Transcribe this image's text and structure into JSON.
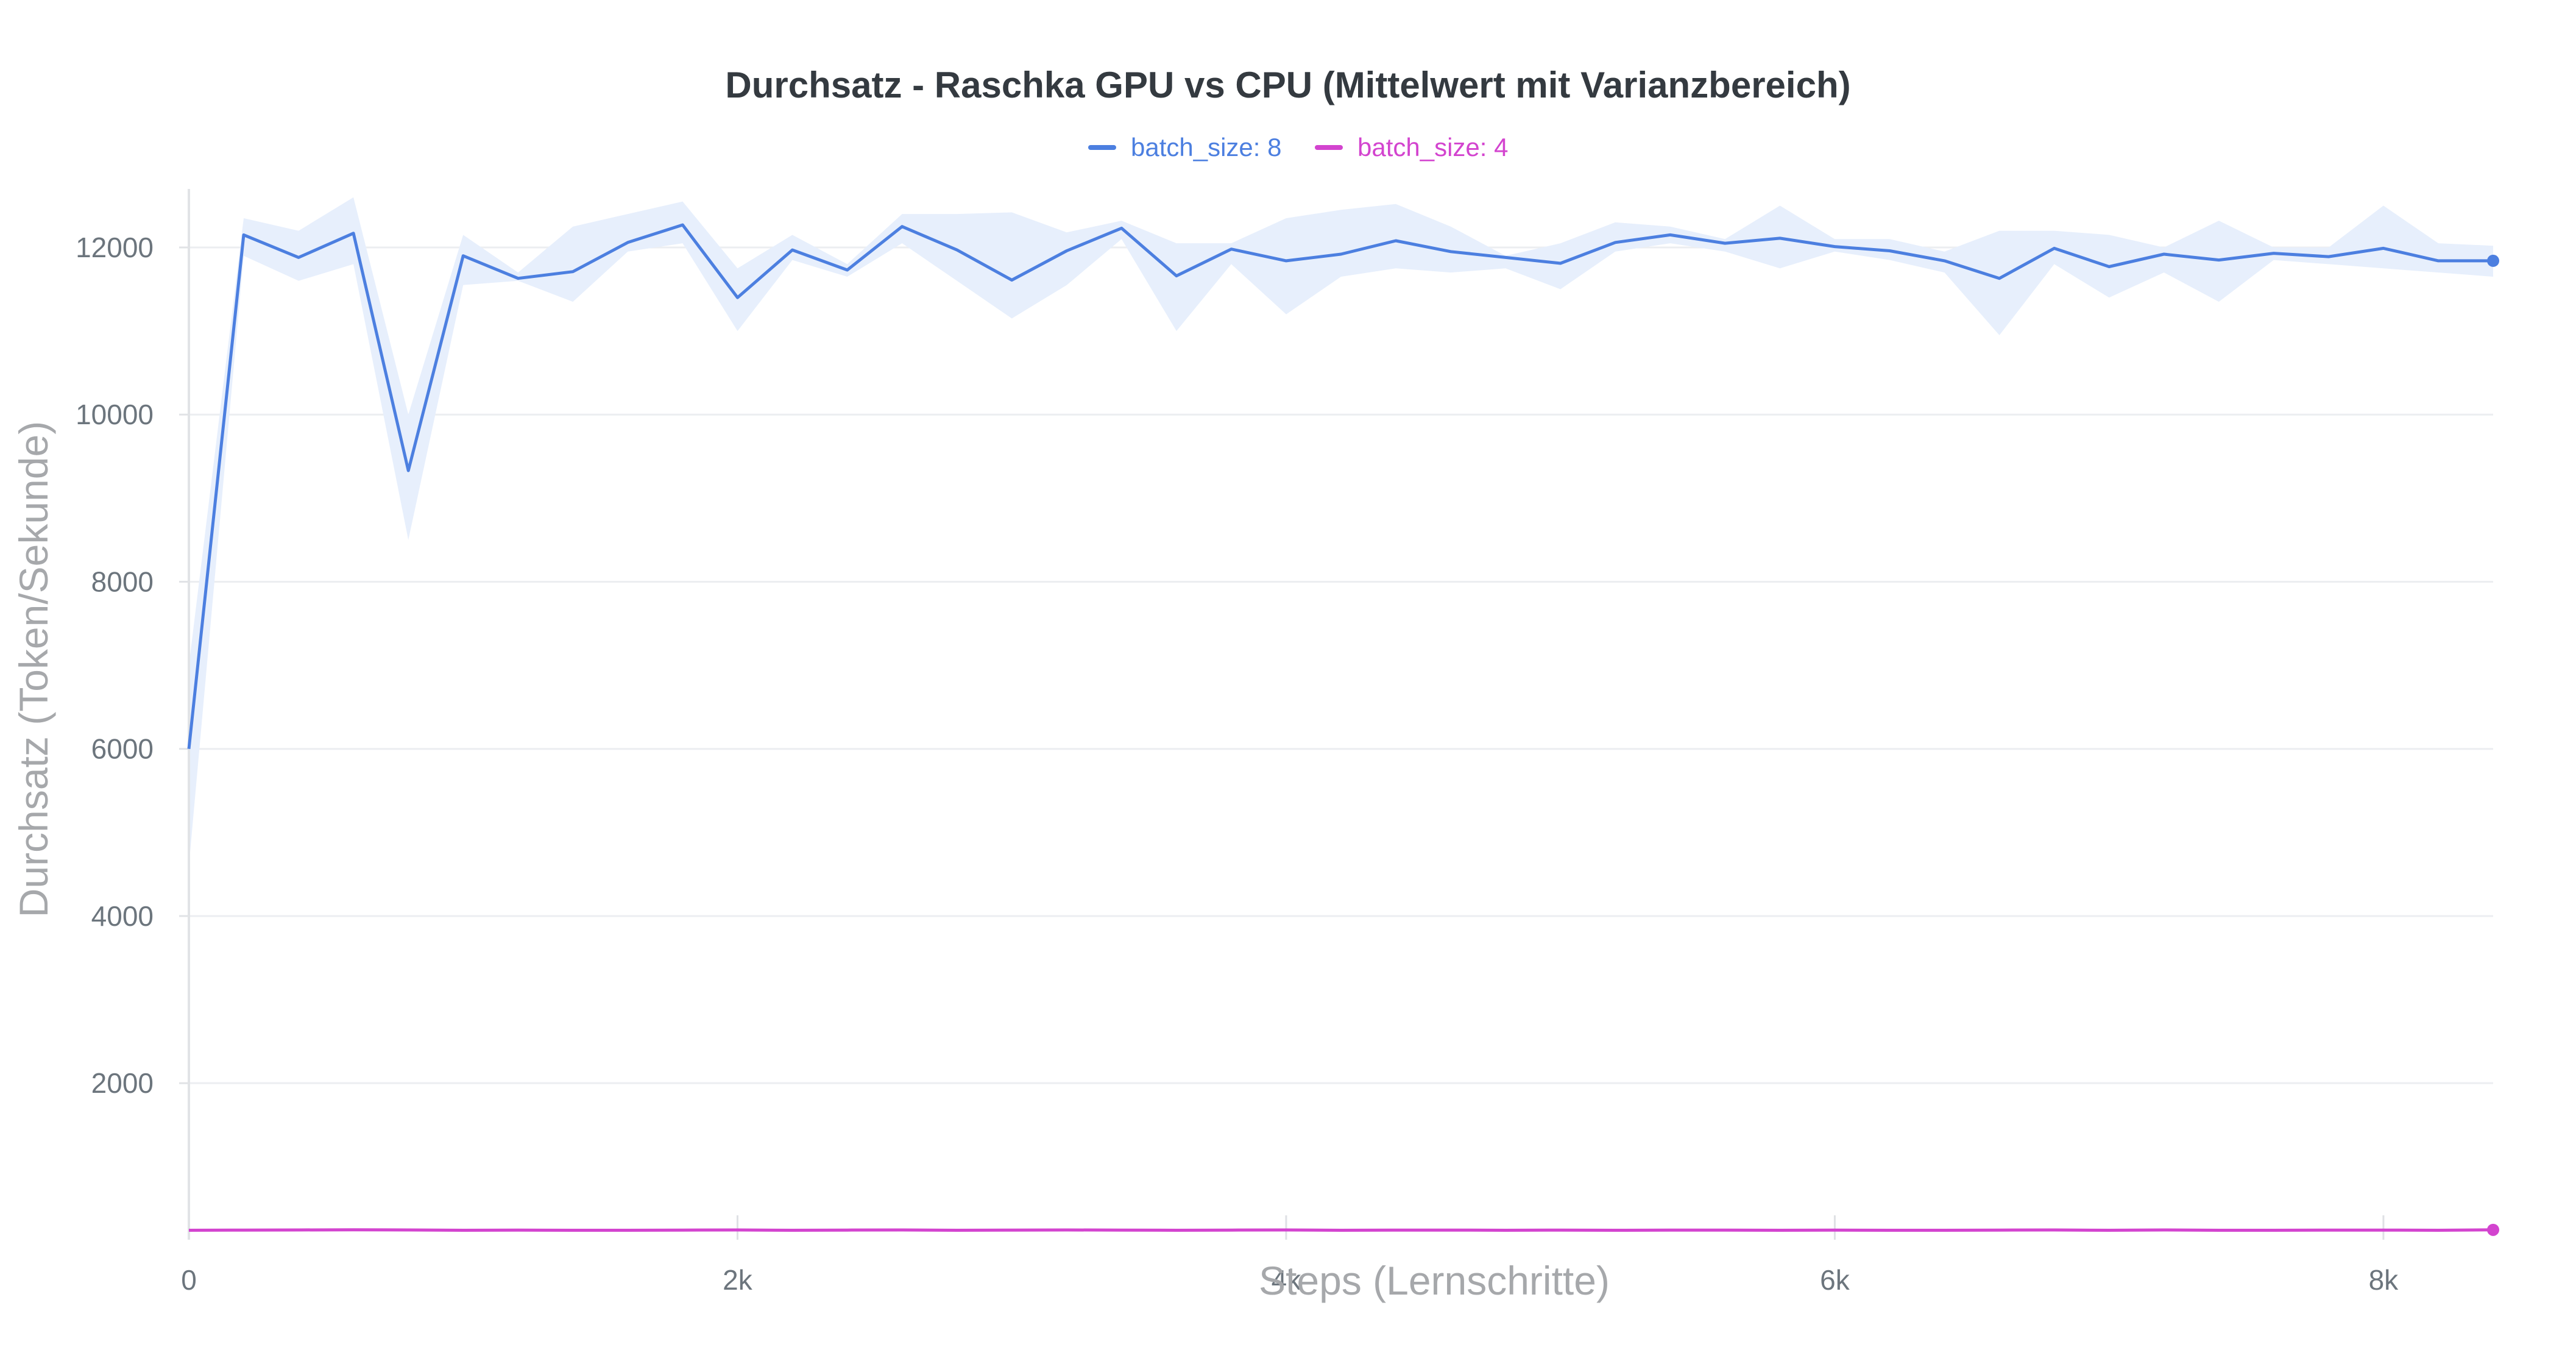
{
  "chart_data": {
    "type": "line",
    "title": "Durchsatz - Raschka GPU vs CPU (Mittelwert mit Varianzbereich)",
    "xlabel": "Steps (Lernschritte)",
    "ylabel": "Durchsatz (Token/Sekunde)",
    "xlim": [
      0,
      8400
    ],
    "ylim": [
      200,
      12700
    ],
    "x_ticks": [
      {
        "value": 0,
        "label": "0"
      },
      {
        "value": 2000,
        "label": "2k"
      },
      {
        "value": 4000,
        "label": "4k"
      },
      {
        "value": 6000,
        "label": "6k"
      },
      {
        "value": 8000,
        "label": "8k"
      }
    ],
    "y_ticks": [
      {
        "value": 2000,
        "label": "2000"
      },
      {
        "value": 4000,
        "label": "4000"
      },
      {
        "value": 6000,
        "label": "6000"
      },
      {
        "value": 8000,
        "label": "8000"
      },
      {
        "value": 10000,
        "label": "10000"
      },
      {
        "value": 12000,
        "label": "12000"
      }
    ],
    "grid": true,
    "legend_position": "top-center",
    "series": [
      {
        "name": "batch_size: 8",
        "color": "#4c7fe0",
        "band_color": "#e7effc",
        "x": [
          0,
          200,
          400,
          600,
          800,
          1000,
          1200,
          1400,
          1600,
          1800,
          2000,
          2200,
          2400,
          2600,
          2800,
          3000,
          3200,
          3400,
          3600,
          3800,
          4000,
          4200,
          4400,
          4600,
          4800,
          5000,
          5200,
          5400,
          5600,
          5800,
          6000,
          6200,
          6400,
          6600,
          6800,
          7000,
          7200,
          7400,
          7600,
          7800,
          8000,
          8200,
          8400
        ],
        "values": [
          6000,
          12150,
          11880,
          12170,
          9330,
          11900,
          11630,
          11710,
          12060,
          12270,
          11400,
          11970,
          11730,
          12250,
          11970,
          11610,
          11960,
          12230,
          11660,
          11980,
          11840,
          11920,
          12080,
          11950,
          11880,
          11810,
          12060,
          12150,
          12050,
          12110,
          12010,
          11960,
          11840,
          11630,
          11990,
          11770,
          11920,
          11850,
          11930,
          11890,
          11990,
          11840,
          11840
        ],
        "lower": [
          4600,
          11900,
          11600,
          11800,
          8500,
          11550,
          11600,
          11350,
          11950,
          12050,
          11000,
          11850,
          11650,
          12050,
          11600,
          11150,
          11550,
          12100,
          11000,
          11800,
          11200,
          11650,
          11750,
          11700,
          11750,
          11500,
          11950,
          12050,
          11950,
          11750,
          11950,
          11850,
          11700,
          10950,
          11800,
          11400,
          11700,
          11350,
          11850,
          11800,
          11750,
          11700,
          11650
        ],
        "upper": [
          7000,
          12350,
          12200,
          12600,
          10000,
          12150,
          11700,
          12250,
          12400,
          12550,
          11750,
          12150,
          11800,
          12400,
          12400,
          12420,
          12180,
          12320,
          12050,
          12050,
          12350,
          12450,
          12520,
          12250,
          11900,
          12050,
          12300,
          12250,
          12100,
          12500,
          12100,
          12100,
          11950,
          12200,
          12200,
          12150,
          12000,
          12320,
          12000,
          12000,
          12500,
          12050,
          12020
        ]
      },
      {
        "name": "batch_size: 4",
        "color": "#d344cf",
        "band_color": "#fae6f9",
        "x": [
          0,
          200,
          400,
          600,
          800,
          1000,
          1200,
          1400,
          1600,
          1800,
          2000,
          2200,
          2400,
          2600,
          2800,
          3000,
          3200,
          3400,
          3600,
          3800,
          4000,
          4200,
          4400,
          4600,
          4800,
          5000,
          5200,
          5400,
          5600,
          5800,
          6000,
          6200,
          6400,
          6600,
          6800,
          7000,
          7200,
          7400,
          7600,
          7800,
          8000,
          8200,
          8400
        ],
        "values": [
          240,
          242,
          244,
          246,
          244,
          240,
          242,
          240,
          240,
          242,
          244,
          240,
          242,
          244,
          240,
          242,
          244,
          242,
          240,
          242,
          244,
          240,
          242,
          242,
          240,
          242,
          240,
          242,
          242,
          240,
          242,
          240,
          240,
          242,
          244,
          240,
          244,
          240,
          240,
          242,
          242,
          240,
          245
        ],
        "lower": [
          220,
          228,
          228,
          230,
          228,
          225,
          226,
          225,
          225,
          226,
          228,
          225,
          226,
          228,
          225,
          226,
          228,
          226,
          225,
          226,
          228,
          225,
          226,
          226,
          225,
          226,
          225,
          226,
          226,
          225,
          226,
          225,
          225,
          226,
          228,
          225,
          228,
          225,
          225,
          226,
          226,
          225,
          228
        ],
        "upper": [
          258,
          258,
          262,
          266,
          262,
          256,
          260,
          256,
          256,
          258,
          262,
          256,
          260,
          262,
          256,
          260,
          262,
          258,
          256,
          258,
          262,
          256,
          258,
          260,
          256,
          258,
          256,
          260,
          258,
          256,
          258,
          256,
          256,
          258,
          262,
          256,
          262,
          256,
          256,
          258,
          258,
          256,
          262
        ]
      }
    ]
  }
}
